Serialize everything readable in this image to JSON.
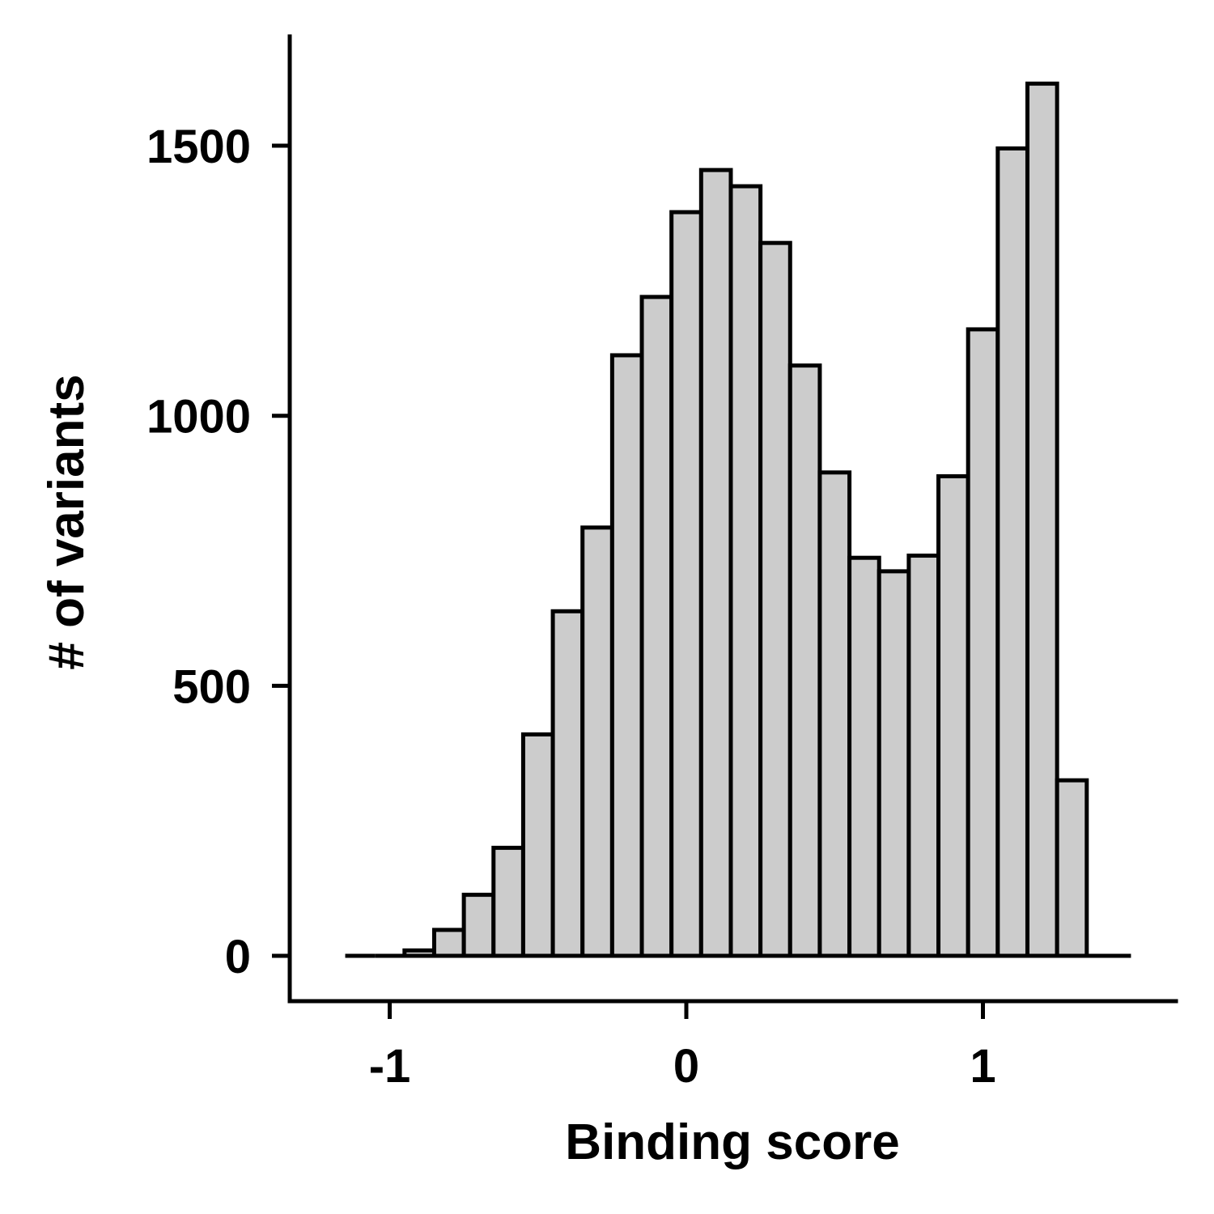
{
  "chart_data": {
    "type": "bar",
    "subtype": "histogram",
    "xlabel": "Binding score",
    "ylabel": "# of variants",
    "xlim": [
      -1.35,
      1.65
    ],
    "ylim": [
      -83,
      1700
    ],
    "x_ticks": [
      -1,
      0,
      1
    ],
    "x_tick_labels": [
      "-1",
      "0",
      "1"
    ],
    "y_ticks": [
      0,
      500,
      1000,
      1500
    ],
    "y_tick_labels": [
      "0",
      "500",
      "1000",
      "1500"
    ],
    "bin_width": 0.1,
    "bins": [
      {
        "x0": -1.15,
        "x1": -1.05,
        "count": 0
      },
      {
        "x0": -1.05,
        "x1": -0.95,
        "count": 0
      },
      {
        "x0": -0.95,
        "x1": -0.85,
        "count": 10
      },
      {
        "x0": -0.85,
        "x1": -0.75,
        "count": 48
      },
      {
        "x0": -0.75,
        "x1": -0.65,
        "count": 113
      },
      {
        "x0": -0.65,
        "x1": -0.55,
        "count": 200
      },
      {
        "x0": -0.55,
        "x1": -0.45,
        "count": 410
      },
      {
        "x0": -0.45,
        "x1": -0.35,
        "count": 638
      },
      {
        "x0": -0.35,
        "x1": -0.25,
        "count": 793
      },
      {
        "x0": -0.25,
        "x1": -0.15,
        "count": 1112
      },
      {
        "x0": -0.15,
        "x1": -0.05,
        "count": 1220
      },
      {
        "x0": -0.05,
        "x1": 0.05,
        "count": 1377
      },
      {
        "x0": 0.05,
        "x1": 0.15,
        "count": 1455
      },
      {
        "x0": 0.15,
        "x1": 0.25,
        "count": 1425
      },
      {
        "x0": 0.25,
        "x1": 0.35,
        "count": 1320
      },
      {
        "x0": 0.35,
        "x1": 0.45,
        "count": 1093
      },
      {
        "x0": 0.45,
        "x1": 0.55,
        "count": 895
      },
      {
        "x0": 0.55,
        "x1": 0.65,
        "count": 737
      },
      {
        "x0": 0.65,
        "x1": 0.75,
        "count": 712
      },
      {
        "x0": 0.75,
        "x1": 0.85,
        "count": 741
      },
      {
        "x0": 0.85,
        "x1": 0.95,
        "count": 888
      },
      {
        "x0": 0.95,
        "x1": 1.05,
        "count": 1160
      },
      {
        "x0": 1.05,
        "x1": 1.15,
        "count": 1495
      },
      {
        "x0": 1.15,
        "x1": 1.25,
        "count": 1615
      },
      {
        "x0": 1.25,
        "x1": 1.35,
        "count": 325
      },
      {
        "x0": 1.35,
        "x1": 1.45,
        "count": 0
      }
    ],
    "bar_fill": "#cccccc",
    "bar_stroke": "#000000",
    "legend": "none",
    "grid": false
  }
}
